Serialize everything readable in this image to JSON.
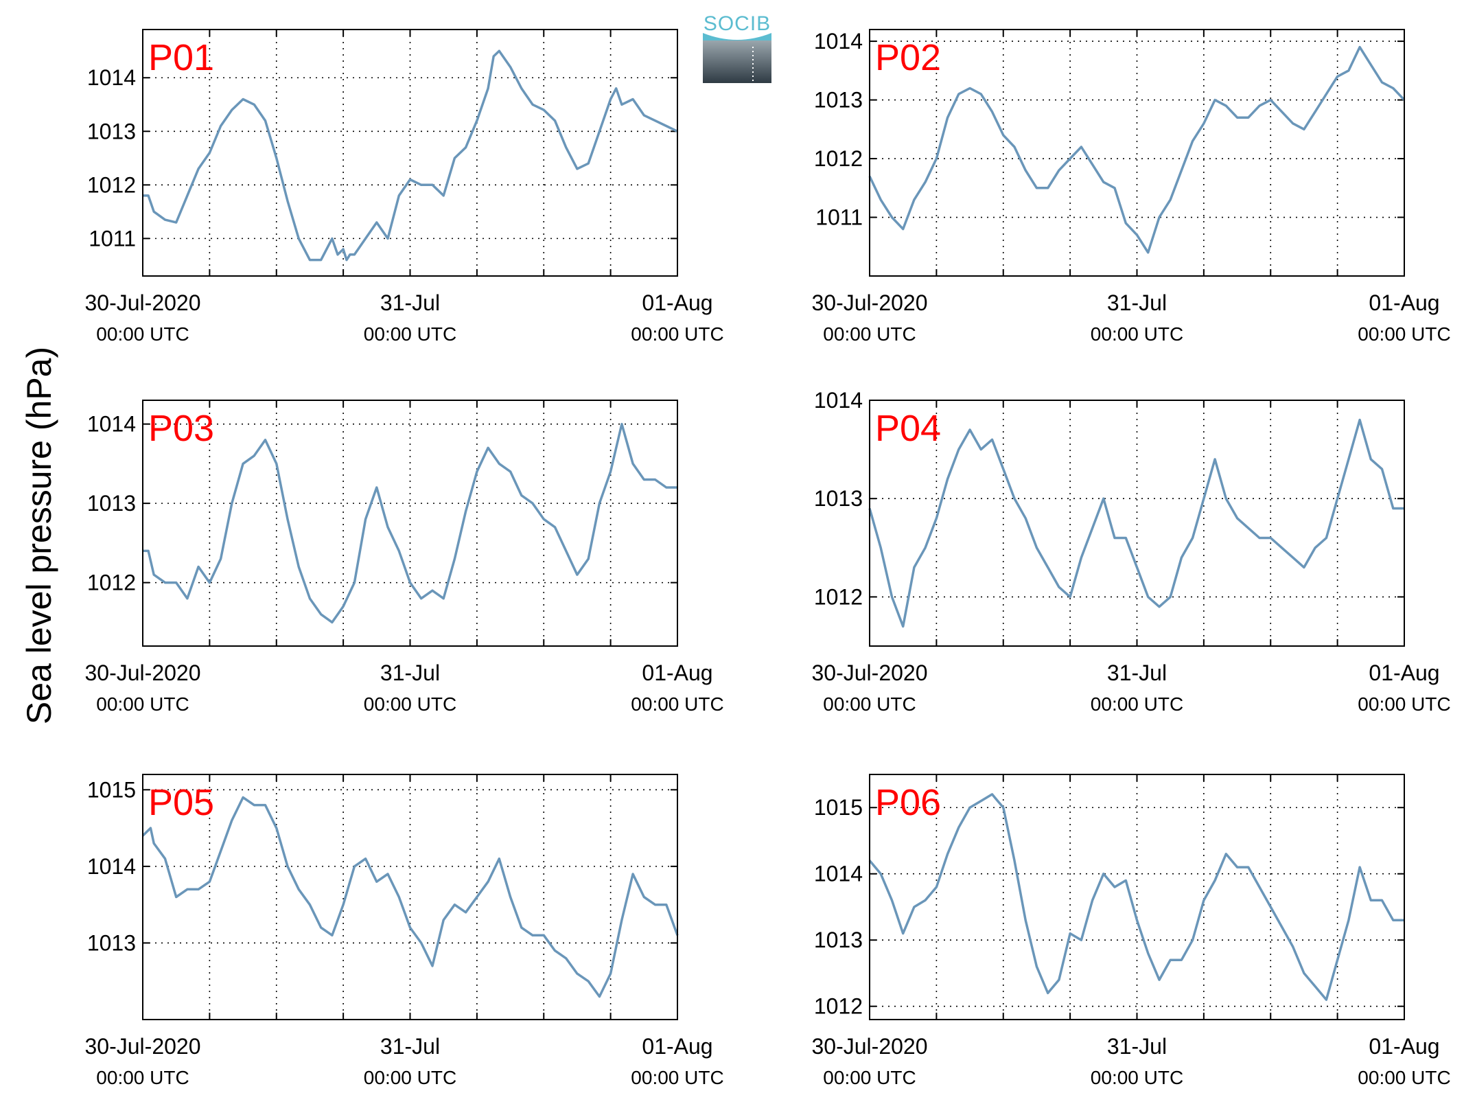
{
  "figure": {
    "ylabel": "Sea level pressure (hPa)",
    "logo_text": "SOCIB",
    "line_color": "#6a96b9",
    "label_color": "#ff0000"
  },
  "chart_data": [
    {
      "type": "line",
      "title": "P01",
      "xlim": [
        0,
        48
      ],
      "ylim": [
        1010.3,
        1014.9
      ],
      "xticks": [
        0,
        24,
        48
      ],
      "xtick_labels": [
        "30-Jul-2020",
        "31-Jul",
        "01-Aug"
      ],
      "xtick_sublabels": [
        "00:00 UTC",
        "00:00 UTC",
        "00:00 UTC"
      ],
      "yticks": [
        1011,
        1012,
        1013,
        1014
      ],
      "grid": true,
      "series": [
        {
          "x": [
            0,
            0.5,
            1,
            2,
            3,
            4,
            5,
            6,
            7,
            8,
            9,
            10,
            11,
            12,
            13,
            14,
            15,
            16,
            17,
            17.5,
            18,
            18.3,
            18.6,
            19,
            20,
            21,
            22,
            23,
            24,
            25,
            26,
            27,
            28,
            29,
            30,
            31,
            31.5,
            32,
            33,
            34,
            35,
            36,
            37,
            38,
            39,
            40,
            41,
            42,
            42.5,
            43,
            44,
            45,
            46,
            47,
            48
          ],
          "y": [
            1011.8,
            1011.8,
            1011.5,
            1011.35,
            1011.3,
            1011.8,
            1012.3,
            1012.6,
            1013.1,
            1013.4,
            1013.6,
            1013.5,
            1013.2,
            1012.5,
            1011.7,
            1011.0,
            1010.6,
            1010.6,
            1011.0,
            1010.7,
            1010.8,
            1010.6,
            1010.7,
            1010.7,
            1011.0,
            1011.3,
            1011.0,
            1011.8,
            1012.1,
            1012.0,
            1012.0,
            1011.8,
            1012.5,
            1012.7,
            1013.2,
            1013.8,
            1014.4,
            1014.5,
            1014.2,
            1013.8,
            1013.5,
            1013.4,
            1013.2,
            1012.7,
            1012.3,
            1012.4,
            1013.0,
            1013.6,
            1013.8,
            1013.5,
            1013.6,
            1013.3,
            1013.2,
            1013.1,
            1013.0
          ]
        }
      ]
    },
    {
      "type": "line",
      "title": "P02",
      "xlim": [
        0,
        48
      ],
      "ylim": [
        1010.0,
        1014.2
      ],
      "xticks": [
        0,
        24,
        48
      ],
      "xtick_labels": [
        "30-Jul-2020",
        "31-Jul",
        "01-Aug"
      ],
      "xtick_sublabels": [
        "00:00 UTC",
        "00:00 UTC",
        "00:00 UTC"
      ],
      "yticks": [
        1011,
        1012,
        1013,
        1014
      ],
      "grid": true,
      "series": [
        {
          "x": [
            0,
            1,
            2,
            3,
            4,
            5,
            6,
            7,
            8,
            9,
            10,
            11,
            12,
            13,
            14,
            15,
            16,
            17,
            18,
            19,
            20,
            21,
            22,
            23,
            24,
            25,
            26,
            27,
            28,
            29,
            30,
            31,
            32,
            33,
            34,
            35,
            36,
            37,
            38,
            39,
            40,
            41,
            42,
            43,
            44,
            45,
            46,
            47,
            48
          ],
          "y": [
            1011.7,
            1011.3,
            1011.0,
            1010.8,
            1011.3,
            1011.6,
            1012.0,
            1012.7,
            1013.1,
            1013.2,
            1013.1,
            1012.8,
            1012.4,
            1012.2,
            1011.8,
            1011.5,
            1011.5,
            1011.8,
            1012.0,
            1012.2,
            1011.9,
            1011.6,
            1011.5,
            1010.9,
            1010.7,
            1010.4,
            1011.0,
            1011.3,
            1011.8,
            1012.3,
            1012.6,
            1013.0,
            1012.9,
            1012.7,
            1012.7,
            1012.9,
            1013.0,
            1012.8,
            1012.6,
            1012.5,
            1012.8,
            1013.1,
            1013.4,
            1013.5,
            1013.9,
            1013.6,
            1013.3,
            1013.2,
            1013.0
          ]
        }
      ]
    },
    {
      "type": "line",
      "title": "P03",
      "xlim": [
        0,
        48
      ],
      "ylim": [
        1011.2,
        1014.3
      ],
      "xticks": [
        0,
        24,
        48
      ],
      "xtick_labels": [
        "30-Jul-2020",
        "31-Jul",
        "01-Aug"
      ],
      "xtick_sublabels": [
        "00:00 UTC",
        "00:00 UTC",
        "00:00 UTC"
      ],
      "yticks": [
        1012,
        1013,
        1014
      ],
      "grid": true,
      "series": [
        {
          "x": [
            0,
            0.5,
            1,
            2,
            3,
            4,
            5,
            6,
            7,
            8,
            9,
            10,
            11,
            12,
            13,
            14,
            15,
            16,
            17,
            18,
            19,
            20,
            21,
            22,
            23,
            24,
            25,
            26,
            27,
            28,
            29,
            30,
            31,
            32,
            33,
            34,
            35,
            36,
            37,
            38,
            39,
            40,
            41,
            42,
            43,
            44,
            45,
            46,
            47,
            48
          ],
          "y": [
            1012.4,
            1012.4,
            1012.1,
            1012.0,
            1012.0,
            1011.8,
            1012.2,
            1012.0,
            1012.3,
            1013.0,
            1013.5,
            1013.6,
            1013.8,
            1013.5,
            1012.8,
            1012.2,
            1011.8,
            1011.6,
            1011.5,
            1011.7,
            1012.0,
            1012.8,
            1013.2,
            1012.7,
            1012.4,
            1012.0,
            1011.8,
            1011.9,
            1011.8,
            1012.3,
            1012.9,
            1013.4,
            1013.7,
            1013.5,
            1013.4,
            1013.1,
            1013.0,
            1012.8,
            1012.7,
            1012.4,
            1012.1,
            1012.3,
            1013.0,
            1013.4,
            1014.0,
            1013.5,
            1013.3,
            1013.3,
            1013.2,
            1013.2
          ]
        }
      ]
    },
    {
      "type": "line",
      "title": "P04",
      "xlim": [
        0,
        48
      ],
      "ylim": [
        1011.5,
        1014.0
      ],
      "xticks": [
        0,
        24,
        48
      ],
      "xtick_labels": [
        "30-Jul-2020",
        "31-Jul",
        "01-Aug"
      ],
      "xtick_sublabels": [
        "00:00 UTC",
        "00:00 UTC",
        "00:00 UTC"
      ],
      "yticks": [
        1012,
        1013,
        1014
      ],
      "grid": true,
      "series": [
        {
          "x": [
            0,
            1,
            2,
            3,
            4,
            5,
            6,
            7,
            8,
            9,
            10,
            11,
            12,
            13,
            14,
            15,
            16,
            17,
            18,
            19,
            20,
            21,
            22,
            23,
            24,
            25,
            26,
            27,
            28,
            29,
            30,
            31,
            32,
            33,
            34,
            35,
            36,
            37,
            38,
            39,
            40,
            41,
            42,
            43,
            44,
            45,
            46,
            47,
            48
          ],
          "y": [
            1012.9,
            1012.5,
            1012.0,
            1011.7,
            1012.3,
            1012.5,
            1012.8,
            1013.2,
            1013.5,
            1013.7,
            1013.5,
            1013.6,
            1013.3,
            1013.0,
            1012.8,
            1012.5,
            1012.3,
            1012.1,
            1012.0,
            1012.4,
            1012.7,
            1013.0,
            1012.6,
            1012.6,
            1012.3,
            1012.0,
            1011.9,
            1012.0,
            1012.4,
            1012.6,
            1013.0,
            1013.4,
            1013.0,
            1012.8,
            1012.7,
            1012.6,
            1012.6,
            1012.5,
            1012.4,
            1012.3,
            1012.5,
            1012.6,
            1013.0,
            1013.4,
            1013.8,
            1013.4,
            1013.3,
            1012.9,
            1012.9
          ]
        }
      ]
    },
    {
      "type": "line",
      "title": "P05",
      "xlim": [
        0,
        48
      ],
      "ylim": [
        1012.0,
        1015.2
      ],
      "xticks": [
        0,
        24,
        48
      ],
      "xtick_labels": [
        "30-Jul-2020",
        "31-Jul",
        "01-Aug"
      ],
      "xtick_sublabels": [
        "00:00 UTC",
        "00:00 UTC",
        "00:00 UTC"
      ],
      "yticks": [
        1013,
        1014,
        1015
      ],
      "grid": true,
      "series": [
        {
          "x": [
            0,
            0.7,
            1,
            2,
            3,
            4,
            5,
            6,
            7,
            8,
            9,
            10,
            11,
            12,
            13,
            14,
            15,
            16,
            17,
            18,
            19,
            20,
            21,
            22,
            23,
            24,
            25,
            26,
            27,
            28,
            29,
            30,
            31,
            32,
            33,
            34,
            35,
            36,
            37,
            38,
            39,
            40,
            41,
            42,
            43,
            44,
            45,
            46,
            47,
            48
          ],
          "y": [
            1014.4,
            1014.5,
            1014.3,
            1014.1,
            1013.6,
            1013.7,
            1013.7,
            1013.8,
            1014.2,
            1014.6,
            1014.9,
            1014.8,
            1014.8,
            1014.5,
            1014.0,
            1013.7,
            1013.5,
            1013.2,
            1013.1,
            1013.5,
            1014.0,
            1014.1,
            1013.8,
            1013.9,
            1013.6,
            1013.2,
            1013.0,
            1012.7,
            1013.3,
            1013.5,
            1013.4,
            1013.6,
            1013.8,
            1014.1,
            1013.6,
            1013.2,
            1013.1,
            1013.1,
            1012.9,
            1012.8,
            1012.6,
            1012.5,
            1012.3,
            1012.6,
            1013.3,
            1013.9,
            1013.6,
            1013.5,
            1013.5,
            1013.1
          ]
        }
      ]
    },
    {
      "type": "line",
      "title": "P06",
      "xlim": [
        0,
        48
      ],
      "ylim": [
        1011.8,
        1015.5
      ],
      "xticks": [
        0,
        24,
        48
      ],
      "xtick_labels": [
        "30-Jul-2020",
        "31-Jul",
        "01-Aug"
      ],
      "xtick_sublabels": [
        "00:00 UTC",
        "00:00 UTC",
        "00:00 UTC"
      ],
      "yticks": [
        1012,
        1013,
        1014,
        1015
      ],
      "grid": true,
      "series": [
        {
          "x": [
            0,
            1,
            2,
            3,
            4,
            5,
            6,
            7,
            8,
            9,
            10,
            11,
            11.5,
            12,
            13,
            14,
            15,
            16,
            17,
            18,
            19,
            20,
            21,
            22,
            23,
            24,
            25,
            26,
            27,
            28,
            29,
            30,
            31,
            32,
            33,
            34,
            35,
            36,
            37,
            38,
            39,
            40,
            41,
            42,
            43,
            44,
            45,
            46,
            47,
            48
          ],
          "y": [
            1014.2,
            1014.0,
            1013.6,
            1013.1,
            1013.5,
            1013.6,
            1013.8,
            1014.3,
            1014.7,
            1015.0,
            1015.1,
            1015.2,
            1015.1,
            1015.0,
            1014.2,
            1013.3,
            1012.6,
            1012.2,
            1012.4,
            1013.1,
            1013.0,
            1013.6,
            1014.0,
            1013.8,
            1013.9,
            1013.3,
            1012.8,
            1012.4,
            1012.7,
            1012.7,
            1013.0,
            1013.6,
            1013.9,
            1014.3,
            1014.1,
            1014.1,
            1013.8,
            1013.5,
            1013.2,
            1012.9,
            1012.5,
            1012.3,
            1012.1,
            1012.7,
            1013.3,
            1014.1,
            1013.6,
            1013.6,
            1013.3,
            1013.3
          ]
        }
      ]
    }
  ]
}
